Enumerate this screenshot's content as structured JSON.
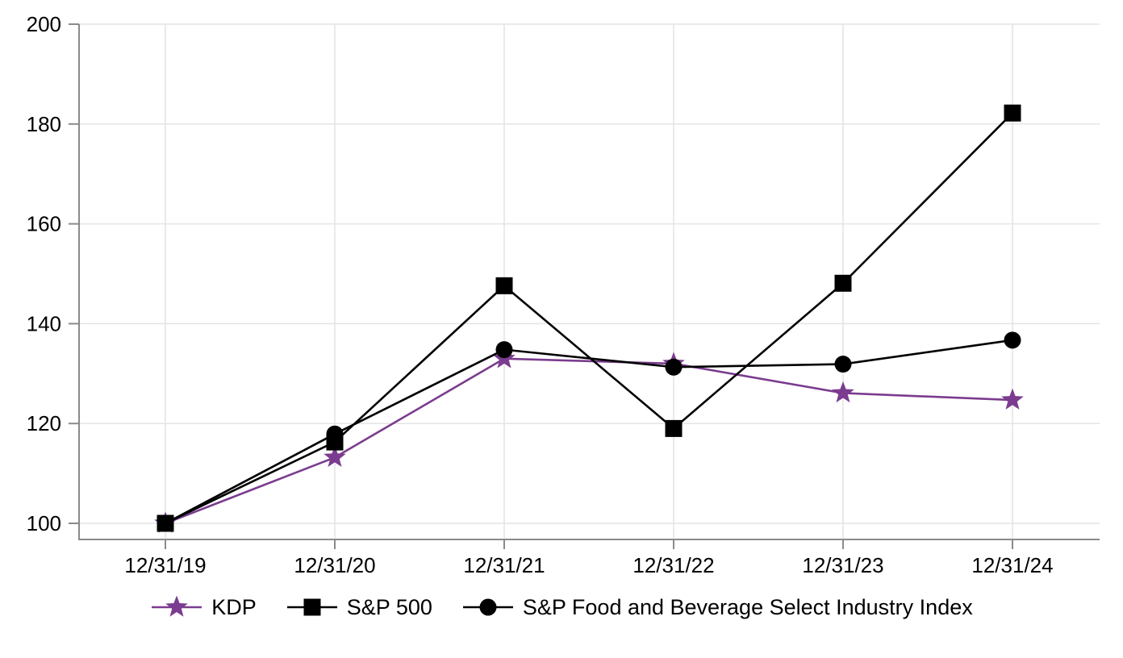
{
  "chart_data": {
    "type": "line",
    "title": "",
    "xlabel": "",
    "ylabel": "",
    "x_categories": [
      "12/31/19",
      "12/31/20",
      "12/31/21",
      "12/31/22",
      "12/31/23",
      "12/31/24"
    ],
    "y_ticks": [
      100,
      120,
      140,
      160,
      180,
      200
    ],
    "ylim": [
      96.8,
      200
    ],
    "grid": true,
    "legend_position": "bottom",
    "series": [
      {
        "name": "KDP",
        "marker": "star",
        "color": "#7B3C8F",
        "values": [
          100,
          113.2,
          133.0,
          132.0,
          126.1,
          124.7
        ]
      },
      {
        "name": "S&P 500",
        "marker": "square",
        "color": "#000000",
        "values": [
          100,
          116.3,
          147.6,
          119.0,
          148.1,
          182.2
        ]
      },
      {
        "name": "S&P Food and Beverage Select Industry Index",
        "marker": "circle",
        "color": "#000000",
        "values": [
          100,
          117.9,
          134.8,
          131.3,
          131.9,
          136.7
        ]
      }
    ]
  },
  "colors": {
    "background": "#ffffff",
    "gridline": "#e4e4e4",
    "axis": "#8a8a8a",
    "text": "#000000"
  }
}
